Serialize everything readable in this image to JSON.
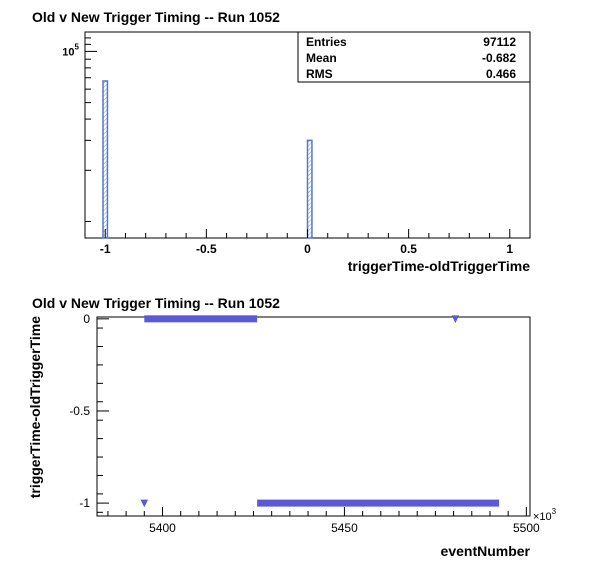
{
  "colors": {
    "hist_line": "#5577cc",
    "hist_fill": "#7799dd",
    "marker": "#5a5ad6"
  },
  "chart_data": [
    {
      "type": "bar",
      "title": "Old v New Trigger Timing -- Run 1052",
      "xlabel": "triggerTime-oldTriggerTime",
      "ylabel": "",
      "xlim": [
        -1.1,
        1.1
      ],
      "ylim_log": [
        8000,
        130000
      ],
      "yscale": "log",
      "x_ticks": [
        {
          "v": -1,
          "label": "-1"
        },
        {
          "v": -0.5,
          "label": "-0.5"
        },
        {
          "v": 0,
          "label": "0"
        },
        {
          "v": 0.5,
          "label": "0.5"
        },
        {
          "v": 1,
          "label": "1"
        }
      ],
      "y_tick_label_base": "10",
      "y_tick_label_exp": "5",
      "bin_width": 0.022,
      "bins": [
        {
          "x": -1.0,
          "count": 67000
        },
        {
          "x": 0.011,
          "count": 30000
        }
      ],
      "stats": {
        "rows": [
          {
            "label": "Entries",
            "value": "97112"
          },
          {
            "label": "Mean",
            "value": "-0.682"
          },
          {
            "label": "RMS",
            "value": "0.466"
          }
        ]
      },
      "grid": false
    },
    {
      "type": "scatter",
      "title": "Old v New Trigger Timing -- Run 1052",
      "xlabel": "eventNumber",
      "ylabel": "triggerTime-oldTriggerTime",
      "x_multiplier": "×10",
      "x_multiplier_exp": "3",
      "xlim": [
        5382,
        5501
      ],
      "ylim": [
        -1.07,
        0.01
      ],
      "x_ticks": [
        {
          "v": 5400,
          "label": "5400"
        },
        {
          "v": 5450,
          "label": "5450"
        },
        {
          "v": 5500,
          "label": "5500"
        }
      ],
      "y_ticks": [
        {
          "v": 0,
          "label": "0"
        },
        {
          "v": -0.5,
          "label": "-0.5"
        },
        {
          "v": -1,
          "label": "-1"
        }
      ],
      "segments": [
        {
          "x_start": 5395,
          "x_end": 5426,
          "y": 0
        },
        {
          "x_start": 5426,
          "x_end": 5492.5,
          "y": -1
        }
      ],
      "points": [
        {
          "x": 5480.5,
          "y": 0
        },
        {
          "x": 5395,
          "y": -1
        }
      ],
      "grid": false
    }
  ]
}
